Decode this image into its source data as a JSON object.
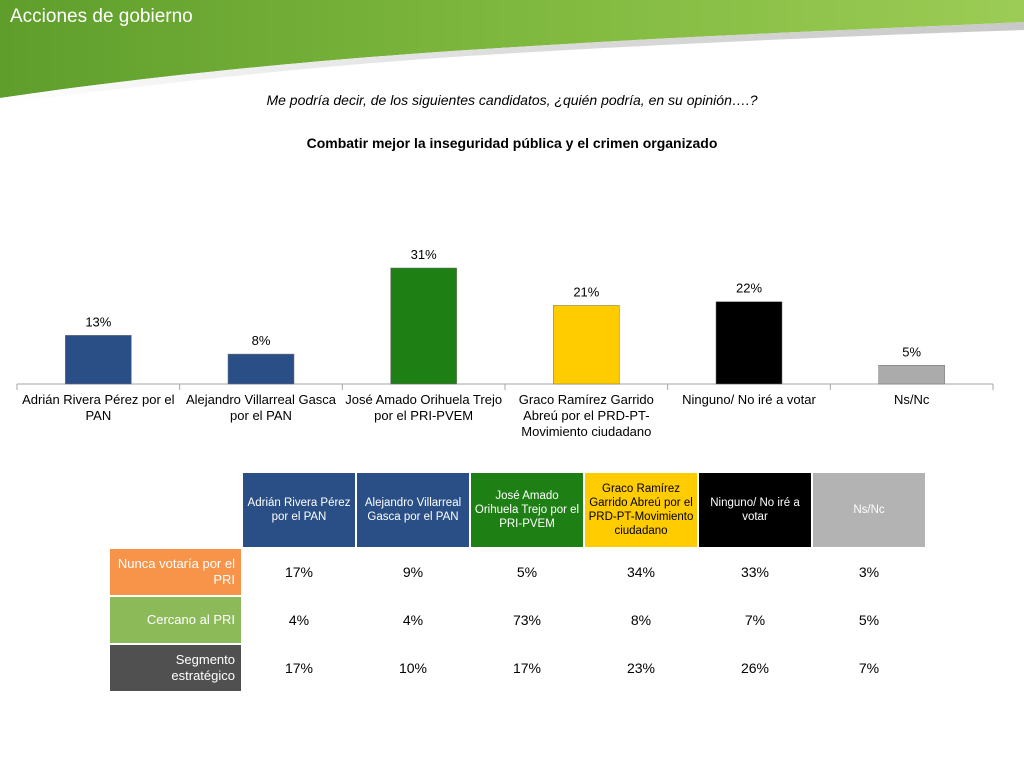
{
  "header": {
    "title": "Acciones de gobierno"
  },
  "question": "Me podría decir, de los siguientes candidatos, ¿quién podría, en su opinión….?",
  "chart_data": {
    "type": "bar",
    "title": "Combatir mejor la inseguridad pública y el crimen organizado",
    "categories": [
      "Adrián Rivera Pérez por el PAN",
      "Alejandro Villarreal Gasca por el PAN",
      "José Amado Orihuela Trejo por el PRI-PVEM",
      "Graco Ramírez Garrido Abreú por el PRD-PT-Movimiento ciudadano",
      "Ninguno/ No iré a votar",
      "Ns/Nc"
    ],
    "values": [
      13,
      8,
      31,
      21,
      22,
      5
    ],
    "data_labels": [
      "13%",
      "8%",
      "31%",
      "21%",
      "22%",
      "5%"
    ],
    "colors": [
      "#2a4f86",
      "#2a4f86",
      "#1e7f14",
      "#ffcc00",
      "#000000",
      "#ababab"
    ],
    "ylim": [
      0,
      31
    ],
    "grid": false,
    "legend": "none"
  },
  "table": {
    "columns": [
      {
        "label": "Adrián Rivera Pérez por el PAN",
        "bg": "#2a4f86",
        "fg": "#ffffff"
      },
      {
        "label": "Alejandro Villarreal Gasca por el PAN",
        "bg": "#2a4f86",
        "fg": "#ffffff"
      },
      {
        "label": "José Amado Orihuela Trejo por el PRI-PVEM",
        "bg": "#1e7f14",
        "fg": "#ffffff"
      },
      {
        "label": "Graco Ramírez Garrido Abreú por el PRD-PT-Movimiento ciudadano",
        "bg": "#ffcc00",
        "fg": "#000000"
      },
      {
        "label": "Ninguno/ No iré a votar",
        "bg": "#000000",
        "fg": "#ffffff"
      },
      {
        "label": "Ns/Nc",
        "bg": "#b3b3b3",
        "fg": "#ffffff"
      }
    ],
    "rows": [
      {
        "label": "Nunca votaría por el PRI",
        "bg": "#f7944a",
        "values": [
          "17%",
          "9%",
          "5%",
          "34%",
          "33%",
          "3%"
        ]
      },
      {
        "label": "Cercano al PRI",
        "bg": "#8dba59",
        "values": [
          "4%",
          "4%",
          "73%",
          "8%",
          "7%",
          "5%"
        ]
      },
      {
        "label": "Segmento estratégico",
        "bg": "#505050",
        "values": [
          "17%",
          "10%",
          "17%",
          "23%",
          "26%",
          "7%"
        ]
      }
    ]
  },
  "colors": {
    "header_green_dark": "#5f9e2c",
    "header_green_light": "#9ccc55"
  }
}
